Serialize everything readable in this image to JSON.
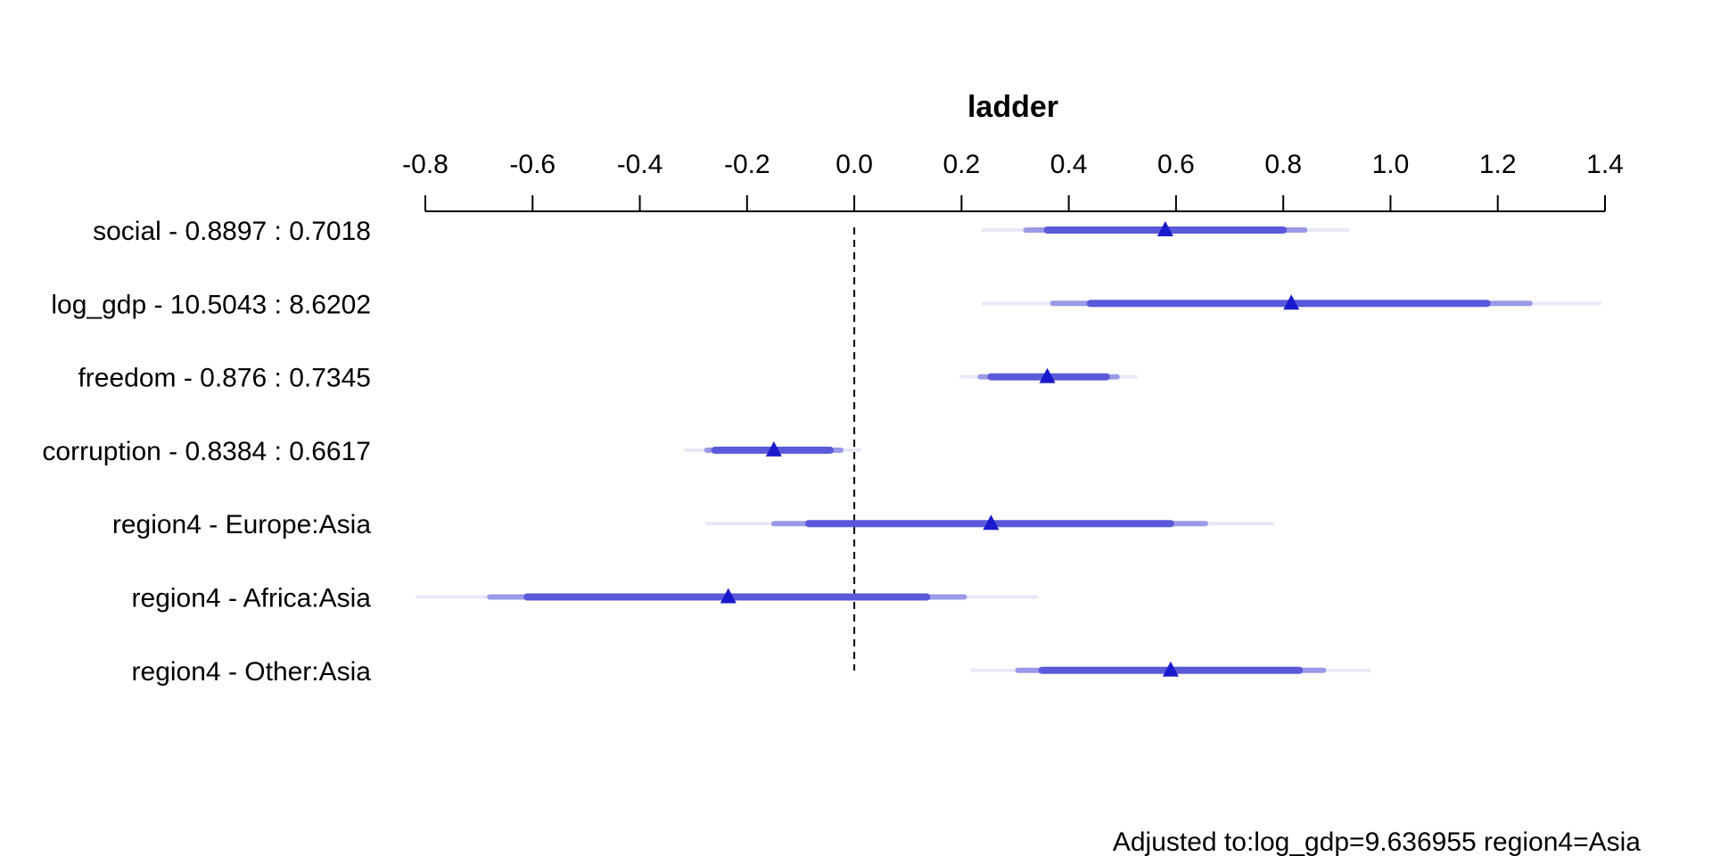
{
  "chart_data": {
    "type": "interval",
    "title": "ladder",
    "x_ticks": [
      -0.8,
      -0.6,
      -0.4,
      -0.2,
      0.0,
      0.2,
      0.4,
      0.6,
      0.8,
      1.0,
      1.2,
      1.4
    ],
    "x_tick_labels": [
      "-0.8",
      "-0.6",
      "-0.4",
      "-0.2",
      "0.0",
      "0.2",
      "0.4",
      "0.6",
      "0.8",
      "1.0",
      "1.2",
      "1.4"
    ],
    "xlim": [
      -0.8,
      1.4
    ],
    "reference_line": 0.0,
    "colors": {
      "inner": "#5959d9",
      "middle": "#9a9ae8",
      "outer": "#e8e8f8",
      "point": "#1a1acc"
    },
    "rows": [
      {
        "label": "social - 0.8897 : 0.7018",
        "estimate": 0.58,
        "ci_outer": [
          0.24,
          0.92
        ],
        "ci_middle": [
          0.32,
          0.84
        ],
        "ci_inner": [
          0.36,
          0.8
        ]
      },
      {
        "label": "log_gdp - 10.5043 : 8.6202",
        "estimate": 0.815,
        "ci_outer": [
          0.24,
          1.39
        ],
        "ci_middle": [
          0.37,
          1.26
        ],
        "ci_inner": [
          0.44,
          1.18
        ]
      },
      {
        "label": "freedom - 0.876 : 0.7345",
        "estimate": 0.36,
        "ci_outer": [
          0.2,
          0.525
        ],
        "ci_middle": [
          0.235,
          0.49
        ],
        "ci_inner": [
          0.255,
          0.47
        ]
      },
      {
        "label": "corruption - 0.8384 : 0.6617",
        "estimate": -0.15,
        "ci_outer": [
          -0.315,
          0.01
        ],
        "ci_middle": [
          -0.275,
          -0.025
        ],
        "ci_inner": [
          -0.26,
          -0.045
        ]
      },
      {
        "label": "region4 - Europe:Asia",
        "estimate": 0.255,
        "ci_outer": [
          -0.275,
          0.78
        ],
        "ci_middle": [
          -0.15,
          0.655
        ],
        "ci_inner": [
          -0.085,
          0.59
        ]
      },
      {
        "label": "region4 - Africa:Asia",
        "estimate": -0.235,
        "ci_outer": [
          -0.815,
          0.34
        ],
        "ci_middle": [
          -0.68,
          0.205
        ],
        "ci_inner": [
          -0.61,
          0.135
        ]
      },
      {
        "label": "region4 - Other:Asia",
        "estimate": 0.59,
        "ci_outer": [
          0.22,
          0.96
        ],
        "ci_middle": [
          0.305,
          0.875
        ],
        "ci_inner": [
          0.35,
          0.83
        ]
      }
    ],
    "footnote": "Adjusted to:log_gdp=9.636955 region4=Asia"
  }
}
